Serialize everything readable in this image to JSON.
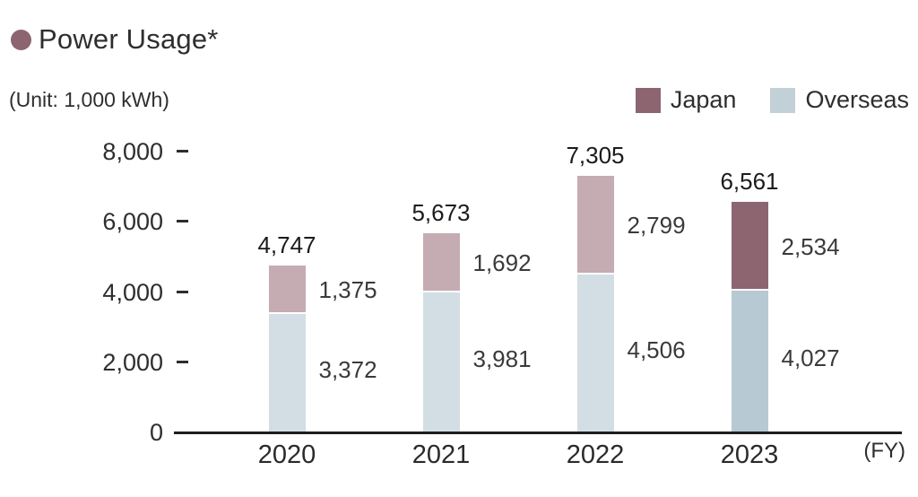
{
  "title": "Power Usage*",
  "unit_label": "(Unit: 1,000 kWh)",
  "fy_label": "(FY)",
  "colors": {
    "title_bullet": "#8c6570",
    "japan_current": "#8c6570",
    "japan_past": "#c5abb2",
    "overseas_current": "#b7c9d2",
    "overseas_past": "#d2dee4",
    "axis_line": "#1e1e1e"
  },
  "legend": {
    "items": [
      {
        "label": "Japan",
        "color": "#8c6570"
      },
      {
        "label": "Overseas",
        "color": "#c2d0d8"
      }
    ]
  },
  "chart_data": {
    "type": "bar",
    "stacked": true,
    "title": "Power Usage*",
    "unit": "1,000 kWh",
    "xlabel": "(FY)",
    "ylabel": "",
    "categories": [
      "2020",
      "2021",
      "2022",
      "2023"
    ],
    "series": [
      {
        "name": "Japan",
        "values": [
          1375,
          1692,
          2799,
          2534
        ]
      },
      {
        "name": "Overseas",
        "values": [
          3372,
          3981,
          4506,
          4027
        ]
      }
    ],
    "totals": [
      4747,
      5673,
      7305,
      6561
    ],
    "total_labels": [
      "4,747",
      "5,673",
      "7,305",
      "6,561"
    ],
    "segment_labels": {
      "japan": [
        "1,375",
        "1,692",
        "2,799",
        "2,534"
      ],
      "overseas": [
        "3,372",
        "3,981",
        "4,506",
        "4,027"
      ]
    },
    "yticks": [
      0,
      2000,
      4000,
      6000,
      8000
    ],
    "ytick_labels": [
      "0",
      "2,000",
      "4,000",
      "6,000",
      "8,000"
    ],
    "ylim": [
      0,
      8000
    ],
    "grid": false,
    "legend_position": "top-right",
    "highlight_category": "2023"
  }
}
